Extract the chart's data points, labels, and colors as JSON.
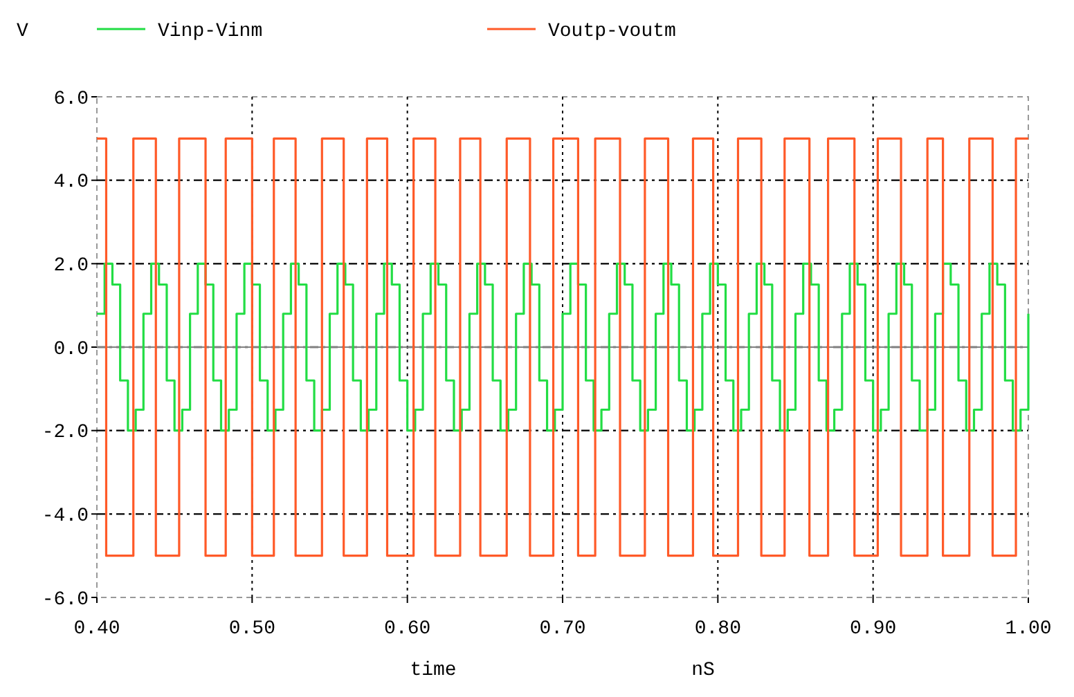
{
  "chart_data": {
    "type": "step",
    "xlabel": "time",
    "ylabel": "V",
    "annotations": [
      "nS"
    ],
    "xlim": [
      0.4,
      1.0
    ],
    "xticks": [
      {
        "value": 0.4,
        "label": "0.40"
      },
      {
        "value": 0.5,
        "label": "0.50"
      },
      {
        "value": 0.6,
        "label": "0.60"
      },
      {
        "value": 0.7,
        "label": "0.70"
      },
      {
        "value": 0.8,
        "label": "0.80"
      },
      {
        "value": 0.9,
        "label": "0.90"
      },
      {
        "value": 1.0,
        "label": "1.00"
      }
    ],
    "ylim": [
      -6,
      6
    ],
    "yticks": [
      {
        "value": -6,
        "label": "-6.0"
      },
      {
        "value": -4,
        "label": "-4.0"
      },
      {
        "value": -2,
        "label": "-2.0"
      },
      {
        "value": 0,
        "label": "0.0"
      },
      {
        "value": 2,
        "label": "2.0"
      },
      {
        "value": 4,
        "label": "4.0"
      },
      {
        "value": 6,
        "label": "6.0"
      }
    ],
    "grid": true,
    "legend": "top",
    "ref_lines": [
      {
        "axis": "y",
        "value": 0,
        "label": null,
        "color": "#808080"
      }
    ],
    "series": [
      {
        "name": "Vinp-Vinm",
        "type": "step",
        "color": "#22dd44",
        "x": [
          0.4,
          0.405,
          0.41,
          0.415,
          0.42,
          0.425,
          0.43,
          0.435,
          0.44,
          0.445,
          0.45,
          0.455,
          0.46,
          0.465,
          0.47,
          0.475,
          0.48,
          0.485,
          0.49,
          0.495,
          0.5,
          0.505,
          0.51,
          0.515,
          0.52,
          0.525,
          0.53,
          0.535,
          0.54,
          0.545,
          0.55,
          0.555,
          0.56,
          0.565,
          0.57,
          0.575,
          0.58,
          0.585,
          0.59,
          0.595,
          0.6,
          0.605,
          0.61,
          0.615,
          0.62,
          0.625,
          0.63,
          0.635,
          0.64,
          0.645,
          0.65,
          0.655,
          0.66,
          0.665,
          0.67,
          0.675,
          0.68,
          0.685,
          0.69,
          0.695,
          0.7,
          0.705,
          0.71,
          0.715,
          0.72,
          0.725,
          0.73,
          0.735,
          0.74,
          0.745,
          0.75,
          0.755,
          0.76,
          0.765,
          0.77,
          0.775,
          0.78,
          0.785,
          0.79,
          0.795,
          0.8,
          0.805,
          0.81,
          0.815,
          0.82,
          0.825,
          0.83,
          0.835,
          0.84,
          0.845,
          0.85,
          0.855,
          0.86,
          0.865,
          0.87,
          0.875,
          0.88,
          0.885,
          0.89,
          0.895,
          0.9,
          0.905,
          0.91,
          0.915,
          0.92,
          0.925,
          0.93,
          0.935,
          0.94,
          0.945,
          0.95,
          0.955,
          0.96,
          0.965,
          0.97,
          0.975,
          0.98,
          0.985,
          0.99,
          0.995,
          1.0
        ],
        "values": [
          0.8,
          2,
          1.5,
          -0.8,
          -2,
          -1.5,
          0.8,
          2,
          1.5,
          -0.8,
          -2,
          -1.5,
          0.8,
          2,
          1.5,
          -0.8,
          -2,
          -1.5,
          0.8,
          2,
          1.5,
          -0.8,
          -2,
          -1.5,
          0.8,
          2,
          1.5,
          -0.8,
          -2,
          -1.5,
          0.8,
          2,
          1.5,
          -0.8,
          -2,
          -1.5,
          0.8,
          2,
          1.5,
          -0.8,
          -2,
          -1.5,
          0.8,
          2,
          1.5,
          -0.8,
          -2,
          -1.5,
          0.8,
          2,
          1.5,
          -0.8,
          -2,
          -1.5,
          0.8,
          2,
          1.5,
          -0.8,
          -2,
          -1.5,
          0.8,
          2,
          1.5,
          -0.8,
          -2,
          -1.5,
          0.8,
          2,
          1.5,
          -0.8,
          -2,
          -1.5,
          0.8,
          2,
          1.5,
          -0.8,
          -2,
          -1.5,
          0.8,
          2,
          1.5,
          -0.8,
          -2,
          -1.5,
          0.8,
          2,
          1.5,
          -0.8,
          -2,
          -1.5,
          0.8,
          2,
          1.5,
          -0.8,
          -2,
          -1.5,
          0.8,
          2,
          1.5,
          -0.8,
          -2,
          -1.5,
          0.8,
          2,
          1.5,
          -0.8,
          -2,
          -1.5,
          0.8,
          2,
          1.5,
          -0.8,
          -2,
          -1.5,
          0.8,
          2,
          1.5,
          -0.8,
          -2,
          -1.5,
          0.8
        ]
      },
      {
        "name": "Voutp-voutm",
        "type": "step",
        "color": "#ff5a28",
        "x": [
          0.4,
          0.406,
          0.4235,
          0.438,
          0.453,
          0.47,
          0.483,
          0.5,
          0.514,
          0.528,
          0.545,
          0.559,
          0.574,
          0.587,
          0.604,
          0.618,
          0.634,
          0.647,
          0.664,
          0.679,
          0.694,
          0.71,
          0.721,
          0.737,
          0.753,
          0.768,
          0.784,
          0.797,
          0.813,
          0.828,
          0.843,
          0.859,
          0.871,
          0.888,
          0.903,
          0.918,
          0.935,
          0.945,
          0.962,
          0.977,
          0.992,
          1.0
        ],
        "values": [
          5,
          -5,
          5,
          -5,
          5,
          -5,
          5,
          -5,
          5,
          -5,
          5,
          -5,
          5,
          -5,
          5,
          -5,
          5,
          -5,
          5,
          -5,
          5,
          -5,
          5,
          -5,
          5,
          -5,
          5,
          -5,
          5,
          -5,
          5,
          -5,
          5,
          -5,
          5,
          -5,
          5,
          -5,
          5,
          -5,
          5,
          5
        ]
      }
    ]
  }
}
